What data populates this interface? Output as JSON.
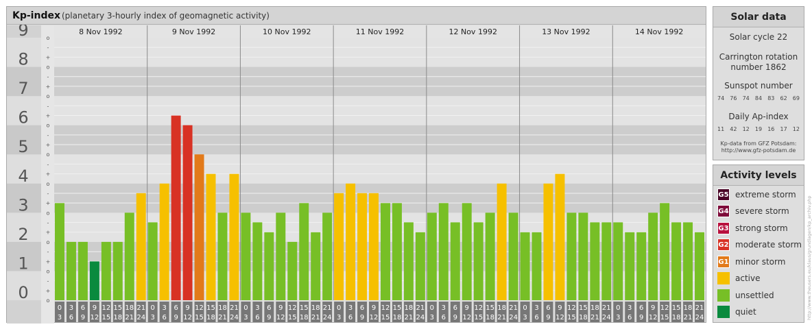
{
  "header": {
    "title": "Kp-index",
    "subtitle": "(planetary 3-hourly index of geomagnetic activity)"
  },
  "chart_data": {
    "type": "bar",
    "title": "Kp-index",
    "subtitle": "(planetary 3-hourly index of geomagnetic activity)",
    "ylim": [
      0,
      9
    ],
    "y_ticks": [
      "0",
      "1",
      "2",
      "3",
      "4",
      "5",
      "6",
      "7",
      "8",
      "9"
    ],
    "subticks": [
      "-",
      "o",
      "+"
    ],
    "days": [
      "8 Nov 1992",
      "9 Nov 1992",
      "10 Nov 1992",
      "11 Nov 1992",
      "12 Nov 1992",
      "13 Nov 1992",
      "14 Nov 1992"
    ],
    "intervals": [
      [
        "0",
        "3"
      ],
      [
        "3",
        "6"
      ],
      [
        "6",
        "9"
      ],
      [
        "9",
        "12"
      ],
      [
        "12",
        "15"
      ],
      [
        "15",
        "18"
      ],
      [
        "18",
        "21"
      ],
      [
        "21",
        "24"
      ]
    ],
    "values": [
      [
        3.33,
        2.0,
        2.0,
        1.33,
        2.0,
        2.0,
        3.0,
        3.67
      ],
      [
        2.67,
        4.0,
        6.33,
        6.0,
        5.0,
        4.33,
        3.0,
        4.33
      ],
      [
        3.0,
        2.67,
        2.33,
        3.0,
        2.0,
        3.33,
        2.33,
        3.0
      ],
      [
        3.67,
        4.0,
        3.67,
        3.67,
        3.33,
        3.33,
        2.67,
        2.33
      ],
      [
        3.0,
        3.33,
        2.67,
        3.33,
        2.67,
        3.0,
        4.0,
        3.0
      ],
      [
        2.33,
        2.33,
        4.0,
        4.33,
        3.0,
        3.0,
        2.67,
        2.67
      ],
      [
        2.67,
        2.33,
        2.33,
        3.0,
        3.33,
        2.67,
        2.67,
        2.33
      ]
    ],
    "level_colors": {
      "quiet": "#0a8a3e",
      "unsettled": "#77bf26",
      "active": "#f6c000",
      "G1": "#e27a1a",
      "G2": "#d83224",
      "G3": "#b8123e",
      "G4": "#7e0c3a",
      "G5": "#4a0426"
    }
  },
  "solar": {
    "title": "Solar data",
    "cycle": "Solar cycle 22",
    "carrington_line1": "Carrington rotation",
    "carrington_line2": "number 1862",
    "sunspot_label": "Sunspot number",
    "sunspot_values": [
      "74",
      "76",
      "74",
      "84",
      "83",
      "62",
      "69"
    ],
    "ap_label": "Daily Ap-index",
    "ap_values": [
      "11",
      "42",
      "12",
      "19",
      "16",
      "17",
      "12"
    ],
    "source_line1": "Kp-data from GFZ Potsdam:",
    "source_line2": "http://www.gfz-potsdam.de"
  },
  "activity": {
    "title": "Activity levels",
    "levels": [
      {
        "code": "G5",
        "label": "extreme storm",
        "color": "#4a0426"
      },
      {
        "code": "G4",
        "label": "severe storm",
        "color": "#7e0c3a"
      },
      {
        "code": "G3",
        "label": "strong storm",
        "color": "#b8123e"
      },
      {
        "code": "G2",
        "label": "moderate storm",
        "color": "#d83224"
      },
      {
        "code": "G1",
        "label": "minor storm",
        "color": "#e27a1a"
      },
      {
        "code": "",
        "label": "active",
        "color": "#f6c000"
      },
      {
        "code": "",
        "label": "unsettled",
        "color": "#77bf26"
      },
      {
        "code": "",
        "label": "quiet",
        "color": "#0a8a3e"
      }
    ]
  },
  "watermark": "http://www.theusers.eu/klaus/grundlagen/kp_archiv.php"
}
